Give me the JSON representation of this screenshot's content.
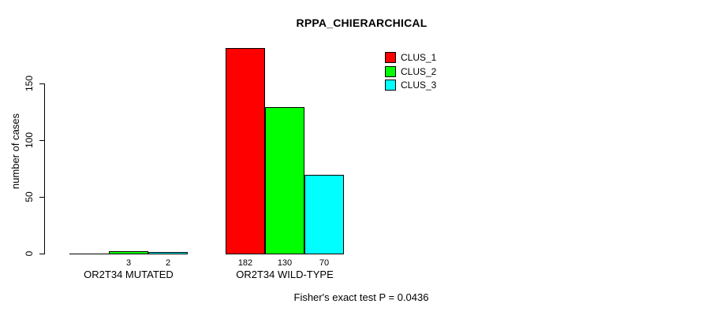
{
  "chart_data": {
    "type": "bar",
    "title": "RPPA_CHIERARCHICAL",
    "ylabel": "number of cases",
    "xlabel": "",
    "categories": [
      "OR2T34 MUTATED",
      "OR2T34 WILD-TYPE"
    ],
    "series": [
      {
        "name": "CLUS_1",
        "color": "#ff0000",
        "values": [
          0,
          182
        ]
      },
      {
        "name": "CLUS_2",
        "color": "#00ff00",
        "values": [
          3,
          130
        ]
      },
      {
        "name": "CLUS_3",
        "color": "#00ffff",
        "values": [
          2,
          70
        ]
      }
    ],
    "bar_value_labels": [
      [
        "",
        "3",
        "2"
      ],
      [
        "182",
        "130",
        "70"
      ]
    ],
    "yticks": [
      0,
      50,
      100,
      150
    ],
    "axis_range": [
      0,
      150
    ],
    "grid": false,
    "legend_position": "top-right",
    "annotation": "Fisher's exact test P = 0.0436",
    "colors": {
      "background": "#ffffff",
      "axis": "#000000",
      "bar_border": "#000000",
      "text": "#000000"
    }
  }
}
